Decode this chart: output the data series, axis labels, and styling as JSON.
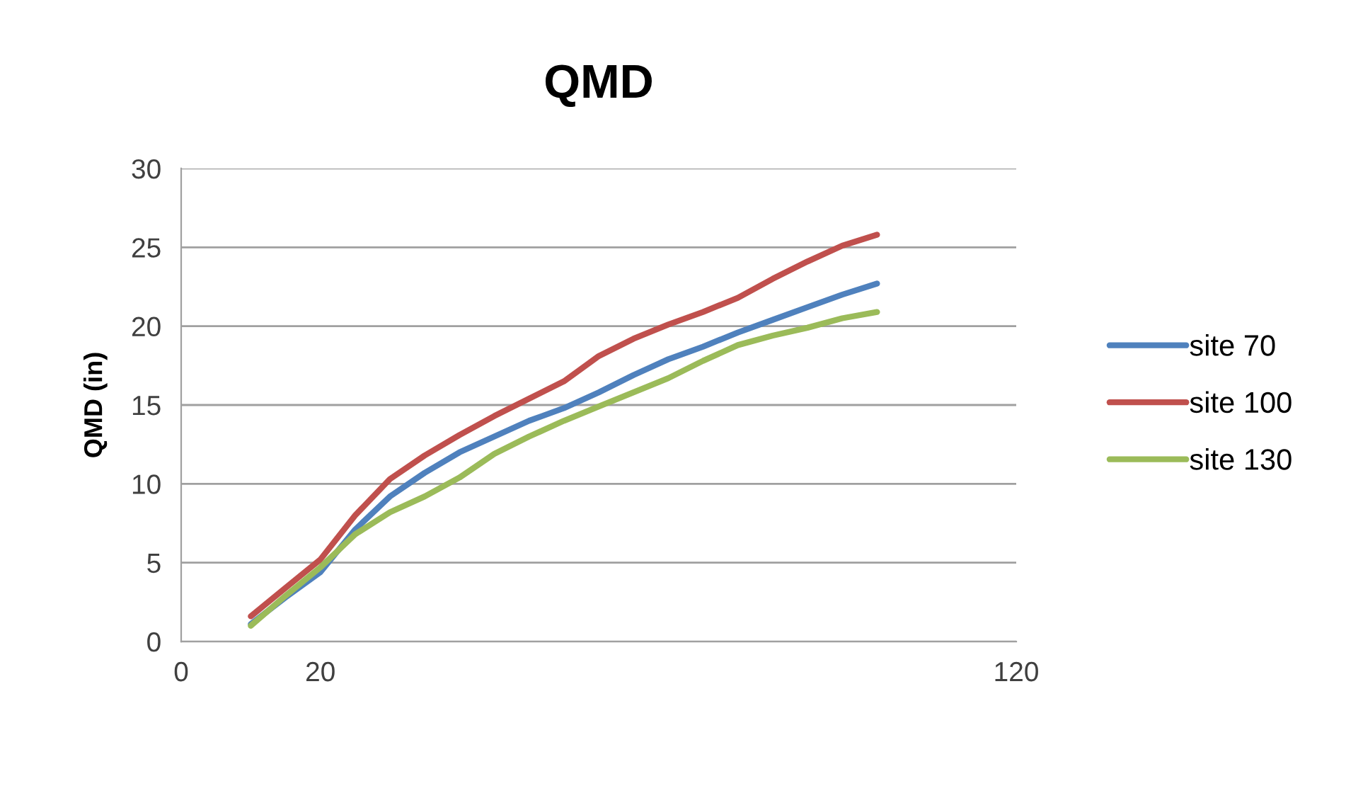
{
  "chart_data": {
    "type": "line",
    "title": "QMD",
    "ylabel": "QMD (in)",
    "x": [
      10,
      15,
      20,
      25,
      30,
      35,
      40,
      45,
      50,
      55,
      60,
      65,
      70,
      75,
      80,
      85,
      90,
      95,
      100
    ],
    "series": [
      {
        "name": "site 70",
        "color": "#4f81bd",
        "values": [
          1.1,
          2.8,
          4.4,
          7.1,
          9.2,
          10.7,
          12.0,
          13.0,
          14.0,
          14.8,
          15.8,
          16.9,
          17.9,
          18.7,
          19.6,
          20.4,
          21.2,
          22.0,
          22.7
        ]
      },
      {
        "name": "site 100",
        "color": "#c0504d",
        "values": [
          1.6,
          3.4,
          5.2,
          8.0,
          10.3,
          11.8,
          13.1,
          14.3,
          15.4,
          16.5,
          18.1,
          19.2,
          20.1,
          20.9,
          21.8,
          23.0,
          24.1,
          25.1,
          25.8
        ]
      },
      {
        "name": "site 130",
        "color": "#9bbb59",
        "values": [
          1.0,
          2.9,
          4.7,
          6.8,
          8.2,
          9.2,
          10.4,
          11.9,
          13.0,
          14.0,
          14.9,
          15.8,
          16.7,
          17.8,
          18.8,
          19.4,
          19.9,
          20.5,
          20.9
        ]
      }
    ],
    "xlim": [
      0,
      120
    ],
    "xticks": [
      0,
      20,
      120
    ],
    "ylim": [
      0,
      30
    ],
    "yticks": [
      0,
      5,
      10,
      15,
      20,
      25,
      30
    ],
    "grid": "y",
    "legend": "right",
    "marker": "none",
    "line_style": "solid"
  }
}
